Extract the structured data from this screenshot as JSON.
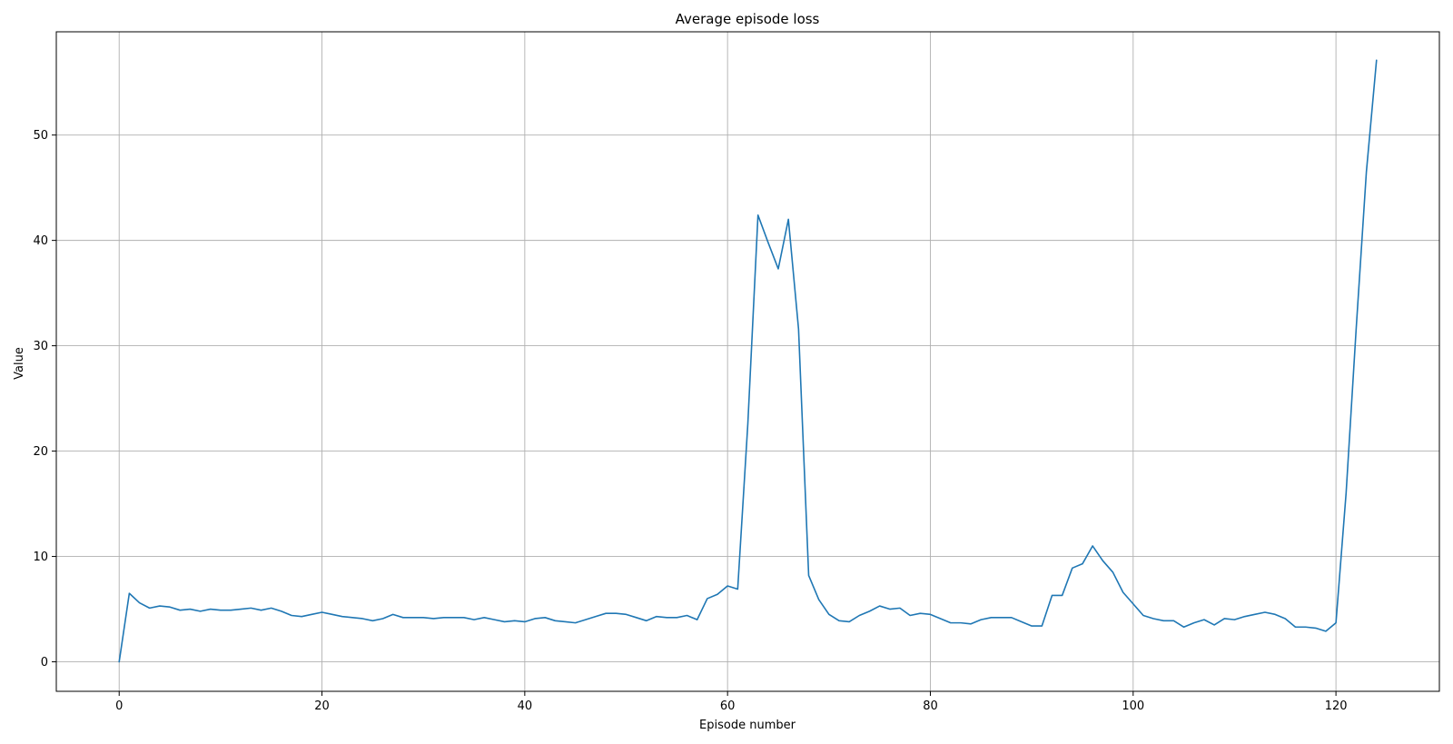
{
  "chart_data": {
    "type": "line",
    "title": "Average episode loss",
    "xlabel": "Episode number",
    "ylabel": "Value",
    "xlim": [
      -6.2,
      130.2
    ],
    "ylim": [
      -2.8,
      59.8
    ],
    "xticks": [
      0,
      20,
      40,
      60,
      80,
      100,
      120
    ],
    "yticks": [
      0,
      10,
      20,
      30,
      40,
      50
    ],
    "grid": true,
    "colors": {
      "series": "#1f77b4"
    },
    "series": [
      {
        "x": [
          0,
          1,
          2,
          3,
          4,
          5,
          6,
          7,
          8,
          9,
          10,
          11,
          12,
          13,
          14,
          15,
          16,
          17,
          18,
          19,
          20,
          21,
          22,
          23,
          24,
          25,
          26,
          27,
          28,
          29,
          30,
          31,
          32,
          33,
          34,
          35,
          36,
          37,
          38,
          39,
          40,
          41,
          42,
          43,
          44,
          45,
          46,
          47,
          48,
          49,
          50,
          51,
          52,
          53,
          54,
          55,
          56,
          57,
          58,
          59,
          60,
          61,
          62,
          63,
          64,
          65,
          66,
          67,
          68,
          69,
          70,
          71,
          72,
          73,
          74,
          75,
          76,
          77,
          78,
          79,
          80,
          81,
          82,
          83,
          84,
          85,
          86,
          87,
          88,
          89,
          90,
          91,
          92,
          93,
          94,
          95,
          96,
          97,
          98,
          99,
          100,
          101,
          102,
          103,
          104,
          105,
          106,
          107,
          108,
          109,
          110,
          111,
          112,
          113,
          114,
          115,
          116,
          117,
          118,
          119,
          120,
          121,
          122,
          123,
          124
        ],
        "values": [
          0.0,
          6.5,
          5.6,
          5.1,
          5.3,
          5.2,
          4.9,
          5.0,
          4.8,
          5.0,
          4.9,
          4.9,
          5.0,
          5.1,
          4.9,
          5.1,
          4.8,
          4.4,
          4.3,
          4.5,
          4.7,
          4.5,
          4.3,
          4.2,
          4.1,
          3.9,
          4.1,
          4.5,
          4.2,
          4.2,
          4.2,
          4.1,
          4.2,
          4.2,
          4.2,
          4.0,
          4.2,
          4.0,
          3.8,
          3.9,
          3.8,
          4.1,
          4.2,
          3.9,
          3.8,
          3.7,
          4.0,
          4.3,
          4.6,
          4.6,
          4.5,
          4.2,
          3.9,
          4.3,
          4.2,
          4.2,
          4.4,
          4.0,
          6.0,
          6.4,
          7.2,
          6.9,
          22.6,
          42.4,
          39.8,
          37.3,
          42.0,
          31.6,
          8.2,
          5.9,
          4.5,
          3.9,
          3.8,
          4.4,
          4.8,
          5.3,
          5.0,
          5.1,
          4.4,
          4.6,
          4.5,
          4.1,
          3.7,
          3.7,
          3.6,
          4.0,
          4.2,
          4.2,
          4.2,
          3.8,
          3.4,
          3.4,
          6.3,
          6.3,
          8.9,
          9.3,
          11.0,
          9.6,
          8.5,
          6.6,
          5.5,
          4.4,
          4.1,
          3.9,
          3.9,
          3.3,
          3.7,
          4.0,
          3.5,
          4.1,
          4.0,
          4.3,
          4.5,
          4.7,
          4.5,
          4.1,
          3.3,
          3.3,
          3.2,
          2.9,
          3.7,
          16.0,
          31.7,
          46.5,
          57.1
        ]
      }
    ]
  }
}
